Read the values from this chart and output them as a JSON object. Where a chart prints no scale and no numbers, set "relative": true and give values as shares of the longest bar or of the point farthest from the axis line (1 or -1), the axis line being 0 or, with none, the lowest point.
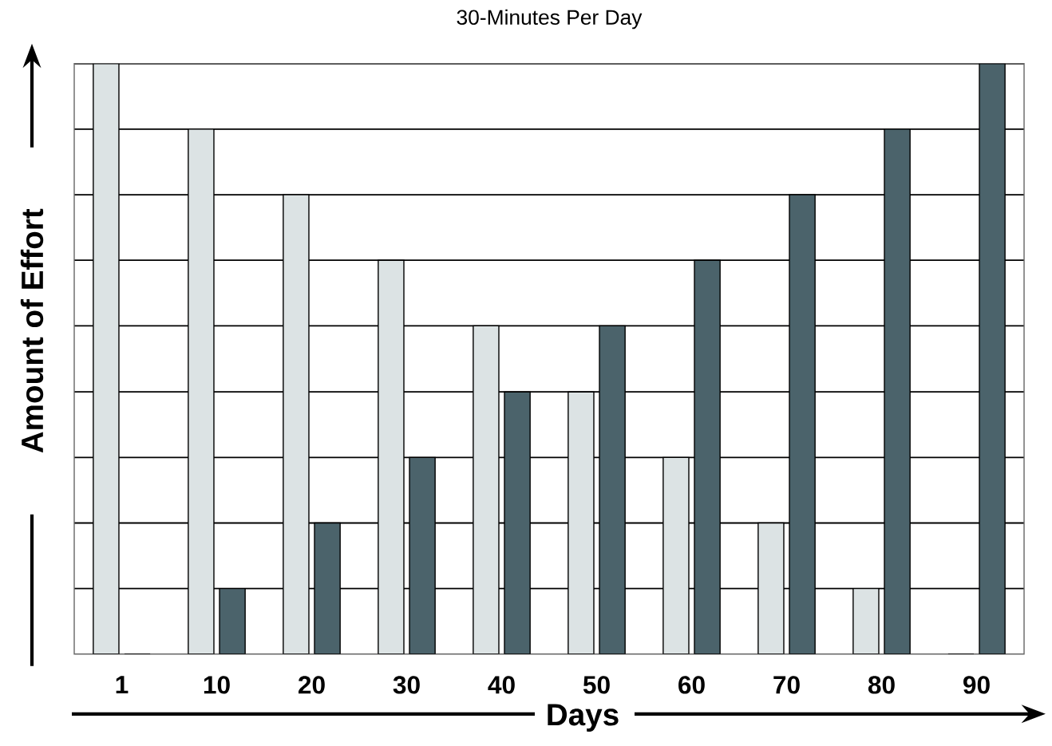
{
  "chart_data": {
    "type": "bar",
    "title": "30-Minutes Per Day",
    "xlabel": "Days",
    "ylabel": "Amount of Effort",
    "categories": [
      "1",
      "10",
      "20",
      "30",
      "40",
      "50",
      "60",
      "70",
      "80",
      "90"
    ],
    "relative": true,
    "grid": "y",
    "series": [
      {
        "color": "#dce3e4",
        "values": [
          1,
          0.889,
          0.778,
          0.667,
          0.556,
          0.444,
          0.333,
          0.222,
          0.111,
          0
        ]
      },
      {
        "color": "#4b636b",
        "values": [
          0,
          0.111,
          0.222,
          0.333,
          0.444,
          0.556,
          0.667,
          0.778,
          0.889,
          1
        ]
      }
    ]
  }
}
